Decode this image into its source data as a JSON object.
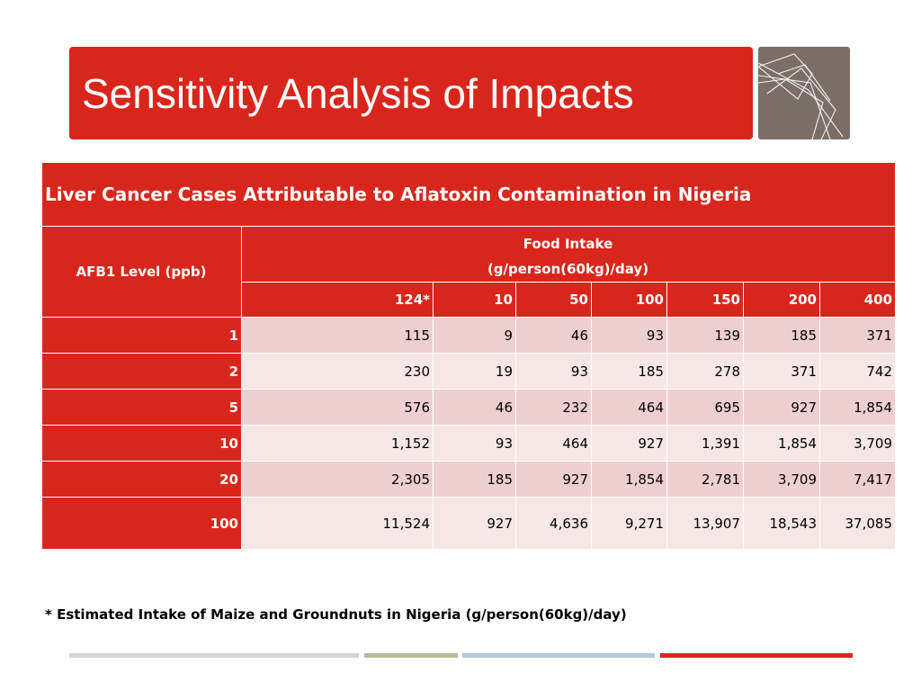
{
  "slide": {
    "title": "Sensitivity Analysis of Impacts"
  },
  "table": {
    "caption": "Liver Cancer Cases Attributable to Aflatoxin Contamination in Nigeria",
    "row_header": "AFB1 Level (ppb)",
    "group_header_line1": "Food Intake",
    "group_header_line2": "(g/person(60kg)/day)",
    "columns": [
      "124*",
      "10",
      "50",
      "100",
      "150",
      "200",
      "400"
    ],
    "rows": [
      {
        "label": "1",
        "values": [
          "115",
          "9",
          "46",
          "93",
          "139",
          "185",
          "371"
        ]
      },
      {
        "label": "2",
        "values": [
          "230",
          "19",
          "93",
          "185",
          "278",
          "371",
          "742"
        ]
      },
      {
        "label": "5",
        "values": [
          "576",
          "46",
          "232",
          "464",
          "695",
          "927",
          "1,854"
        ]
      },
      {
        "label": "10",
        "values": [
          "1,152",
          "93",
          "464",
          "927",
          "1,391",
          "1,854",
          "3,709"
        ]
      },
      {
        "label": "20",
        "values": [
          "2,305",
          "185",
          "927",
          "1,854",
          "2,781",
          "3,709",
          "7,417"
        ]
      },
      {
        "label": "100",
        "values": [
          "11,524",
          "927",
          "4,636",
          "9,271",
          "13,907",
          "18,543",
          "37,085"
        ]
      }
    ]
  },
  "footnote": "* Estimated Intake of Maize and Groundnuts in Nigeria (g/person(60kg)/day)",
  "colors": {
    "accent_red": "#d9261c",
    "row_odd": "#eecfcf",
    "row_even": "#f7e6e6",
    "logo_bg": "#7b6e66",
    "line_gray": "#d4d4d4",
    "line_olive": "#b9b99a",
    "line_blue": "#b8c7d8",
    "line_red": "#d9261c"
  }
}
